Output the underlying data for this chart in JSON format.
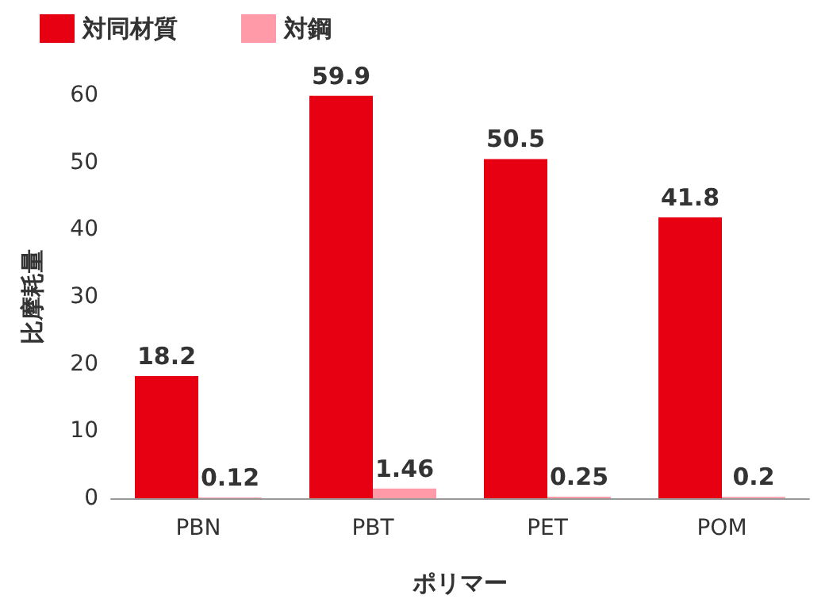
{
  "chart_data": {
    "type": "bar",
    "xlabel": "ポリマー",
    "ylabel": "比摩耗量",
    "categories": [
      "PBN",
      "PBT",
      "PET",
      "POM"
    ],
    "series": [
      {
        "name": "対同材質",
        "color": "#e60012",
        "values": [
          18.2,
          59.9,
          50.5,
          41.8
        ]
      },
      {
        "name": "対鋼",
        "color": "#ff9aa8",
        "values": [
          0.12,
          1.46,
          0.25,
          0.2
        ]
      }
    ],
    "ylim": [
      0,
      60
    ],
    "yticks": [
      0,
      10,
      20,
      30,
      40,
      50,
      60
    ],
    "grid": false,
    "legend": "top left",
    "data_labels": true
  }
}
